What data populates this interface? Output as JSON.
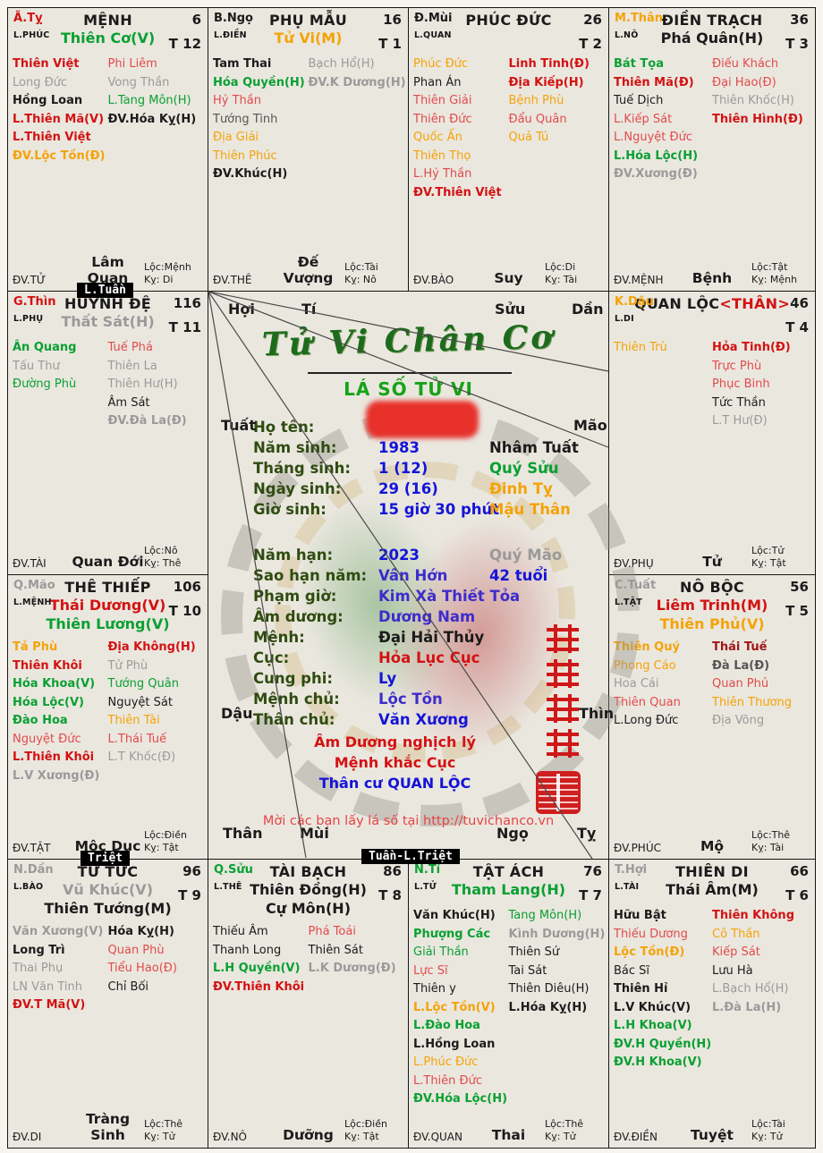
{
  "meta": {
    "logo": "Tử Vi Chân Cơ",
    "subtitle": "LÁ SỐ TỬ VI"
  },
  "badges": {
    "tuan": "L.Tuần",
    "triet": "Triệt",
    "tuan_triet": "Tuần-L.Triệt"
  },
  "center": {
    "branches": [
      "Hợi",
      "Tí",
      "Sửu",
      "Dần",
      "Mão",
      "Thìn",
      "Tỵ",
      "Ngọ",
      "Mùi",
      "Thân",
      "Dậu",
      "Tuất"
    ],
    "fields": [
      {
        "label": "Họ tên:",
        "value": "",
        "vc": "k",
        "extra": "",
        "xc": "k",
        "redacted": true
      },
      {
        "label": "Năm sinh:",
        "value": "1983",
        "vc": "bl",
        "extra": "Nhâm Tuất",
        "xc": "k"
      },
      {
        "label": "Tháng sinh:",
        "value": "1 (12)",
        "vc": "bl",
        "extra": "Quý Sửu",
        "xc": "gn"
      },
      {
        "label": "Ngày sinh:",
        "value": "29 (16)",
        "vc": "bl",
        "extra": "Đinh Tỵ",
        "xc": "or"
      },
      {
        "label": "Giờ sinh:",
        "value": "15 giờ 30 phút",
        "vc": "bl",
        "extra": "Mậu Thân",
        "xc": "or"
      },
      {
        "label": "Năm hạn:",
        "value": "2023",
        "vc": "bl",
        "extra": "Quý Mão",
        "xc": "gy"
      },
      {
        "label": "Sao hạn năm:",
        "value": "Vân Hớn",
        "vc": "bl2",
        "extra": "42 tuổi",
        "xc": "bl"
      },
      {
        "label": "Phạm giờ:",
        "value": "Kim Xà Thiết Tỏa",
        "vc": "bl2",
        "extra": "",
        "xc": "k"
      },
      {
        "label": "Âm dương:",
        "value": "Dương Nam",
        "vc": "bl2",
        "extra": "",
        "xc": "k"
      },
      {
        "label": "Mệnh:",
        "value": "Đại Hải Thủy",
        "vc": "k",
        "extra": "",
        "xc": "k"
      },
      {
        "label": "Cục:",
        "value": "Hỏa Lục Cục",
        "vc": "rd",
        "extra": "",
        "xc": "k"
      },
      {
        "label": "Cung phi:",
        "value": "Ly",
        "vc": "bl",
        "extra": "",
        "xc": "k"
      },
      {
        "label": "Mệnh chủ:",
        "value": "Lộc Tồn",
        "vc": "bl2",
        "extra": "",
        "xc": "k"
      },
      {
        "label": "Thân chủ:",
        "value": "Văn Xương",
        "vc": "bl",
        "extra": "",
        "xc": "k"
      }
    ],
    "notes": [
      {
        "t": "Âm Dương nghịch lý",
        "c": "rd"
      },
      {
        "t": "Mệnh khắc Cục",
        "c": "rd"
      },
      {
        "t": "Thân cư QUAN LỘC",
        "c": "bl"
      }
    ],
    "footer": "Mời các bạn lấy lá số tại http://tuvichanco.vn",
    "seal_text": "紫微真機"
  },
  "palaces": [
    {
      "id": "menh",
      "corner": "Ã.Tỵ",
      "cc": "rd",
      "sub": "L.PHÚC",
      "title": "MỆNH",
      "extra": "",
      "num": "6",
      "tnum": "T 12",
      "mains": [
        {
          "t": "Thiên Cơ(V)",
          "c": "gn"
        }
      ],
      "left": [
        {
          "t": "Thiên Việt",
          "c": "rd",
          "b": 1
        },
        {
          "t": "Long Đức",
          "c": "gy"
        },
        {
          "t": "Hồng Loan",
          "c": "k",
          "b": 1
        },
        {
          "t": "L.Thiên Mã(V)",
          "c": "rd",
          "b": 1
        },
        {
          "t": "L.Thiên Việt",
          "c": "rd",
          "b": 1
        },
        {
          "t": "ĐV.Lộc Tồn(Đ)",
          "c": "or",
          "b": 1
        }
      ],
      "right": [
        {
          "t": "Phi Liêm",
          "c": "rd2"
        },
        {
          "t": "Vong Thần",
          "c": "gy"
        },
        {
          "t": "L.Tang Môn(H)",
          "c": "gn"
        },
        {
          "t": "ĐV.Hóa Kỵ(H)",
          "c": "k",
          "b": 1
        }
      ],
      "dv": "ĐV.TỬ",
      "stage": "Lâm Quan",
      "loc": "Lộc:Mệnh",
      "ky": "Kỵ: Di"
    },
    {
      "id": "phumau",
      "corner": "B.Ngọ",
      "cc": "k",
      "sub": "L.ĐIỀN",
      "title": "PHỤ MẪU",
      "extra": "",
      "num": "16",
      "tnum": "T 1",
      "mains": [
        {
          "t": "Tử Vi(M)",
          "c": "or"
        }
      ],
      "left": [
        {
          "t": "Tam Thai",
          "c": "k",
          "b": 1
        },
        {
          "t": "Hóa Quyền(H)",
          "c": "gn",
          "b": 1
        },
        {
          "t": "Hỷ Thần",
          "c": "rd2"
        },
        {
          "t": "Tướng Tinh",
          "c": "dk"
        },
        {
          "t": "Địa Giải",
          "c": "or"
        },
        {
          "t": "Thiên Phúc",
          "c": "or"
        },
        {
          "t": "ĐV.Khúc(H)",
          "c": "k",
          "b": 1
        }
      ],
      "right": [
        {
          "t": "Bạch Hổ(H)",
          "c": "gy"
        },
        {
          "t": "ĐV.K Dương(H)",
          "c": "gy",
          "b": 1
        }
      ],
      "dv": "ĐV.THÊ",
      "stage": "Đế Vượng",
      "loc": "Lộc:Tài",
      "ky": "Kỵ: Nô"
    },
    {
      "id": "phucduc",
      "corner": "Đ.Mùi",
      "cc": "k",
      "sub": "L.QUAN",
      "title": "PHÚC ĐỨC",
      "extra": "",
      "num": "26",
      "tnum": "T 2",
      "mains": [],
      "left": [
        {
          "t": "Phúc Đức",
          "c": "or"
        },
        {
          "t": "Phan Án",
          "c": "k"
        },
        {
          "t": "Thiên Giải",
          "c": "rd2"
        },
        {
          "t": "Thiên Đức",
          "c": "rd2"
        },
        {
          "t": "Quốc Ấn",
          "c": "or"
        },
        {
          "t": "Thiên Thọ",
          "c": "or"
        },
        {
          "t": "L.Hỷ Thần",
          "c": "rd2"
        },
        {
          "t": "ĐV.Thiên Việt",
          "c": "rd",
          "b": 1
        }
      ],
      "right": [
        {
          "t": "Linh Tinh(Đ)",
          "c": "rd",
          "b": 1
        },
        {
          "t": "Địa Kiếp(H)",
          "c": "rd",
          "b": 1
        },
        {
          "t": "Bệnh Phù",
          "c": "or"
        },
        {
          "t": "Đẩu Quân",
          "c": "rd2"
        },
        {
          "t": "Quả Tú",
          "c": "or"
        }
      ],
      "dv": "ĐV.BÀO",
      "stage": "Suy",
      "loc": "Lộc:Di",
      "ky": "Kỵ: Tài"
    },
    {
      "id": "dientrach",
      "corner": "M.Thân",
      "cc": "or",
      "sub": "L.NÔ",
      "title": "ĐIỀN TRẠCH",
      "extra": "",
      "num": "36",
      "tnum": "T 3",
      "mains": [
        {
          "t": "Phá Quân(H)",
          "c": "k"
        }
      ],
      "left": [
        {
          "t": "Bát Tọa",
          "c": "gn",
          "b": 1
        },
        {
          "t": "Thiên Mã(Đ)",
          "c": "rd",
          "b": 1
        },
        {
          "t": "Tuế Dịch",
          "c": "k"
        },
        {
          "t": "L.Kiếp Sát",
          "c": "rd2"
        },
        {
          "t": "L.Nguyệt Đức",
          "c": "rd2"
        },
        {
          "t": "L.Hóa Lộc(H)",
          "c": "gn",
          "b": 1
        },
        {
          "t": "ĐV.Xương(Đ)",
          "c": "gy",
          "b": 1
        }
      ],
      "right": [
        {
          "t": "Điếu Khách",
          "c": "rd2"
        },
        {
          "t": "Đại Hao(Đ)",
          "c": "rd2"
        },
        {
          "t": "Thiên Khốc(H)",
          "c": "gy"
        },
        {
          "t": "Thiên Hình(Đ)",
          "c": "rd",
          "b": 1
        }
      ],
      "dv": "ĐV.MỆNH",
      "stage": "Bệnh",
      "loc": "Lộc:Tật",
      "ky": "Kỵ: Mệnh"
    },
    {
      "id": "huynhde",
      "corner": "G.Thìn",
      "cc": "rd",
      "sub": "L.PHỤ",
      "title": "HUYNH ĐỆ",
      "extra": "",
      "num": "116",
      "tnum": "T 11",
      "mains": [
        {
          "t": "Thất Sát(H)",
          "c": "gy"
        }
      ],
      "left": [
        {
          "t": "Ân Quang",
          "c": "gn",
          "b": 1
        },
        {
          "t": "Tấu Thư",
          "c": "gy"
        },
        {
          "t": "Đường Phù",
          "c": "gn"
        }
      ],
      "right": [
        {
          "t": "Tuế Phá",
          "c": "rd2"
        },
        {
          "t": "Thiên La",
          "c": "gy"
        },
        {
          "t": "Thiên Hư(H)",
          "c": "gy"
        },
        {
          "t": "Âm Sát",
          "c": "k"
        },
        {
          "t": "ĐV.Đà La(Đ)",
          "c": "gy",
          "b": 1
        }
      ],
      "dv": "ĐV.TÀI",
      "stage": "Quan Đới",
      "loc": "Lộc:Nô",
      "ky": "Kỵ: Thê"
    },
    {
      "id": "quanloc",
      "corner": "K.Dậu",
      "cc": "or",
      "sub": "L.DI",
      "title": "QUAN LỘC",
      "extra": "<THÂN>",
      "num": "46",
      "tnum": "T 4",
      "mains": [],
      "left": [
        {
          "t": "Thiên Trù",
          "c": "or"
        }
      ],
      "right": [
        {
          "t": "Hỏa Tinh(Đ)",
          "c": "rd",
          "b": 1
        },
        {
          "t": "Trực Phù",
          "c": "rd2"
        },
        {
          "t": "Phục Binh",
          "c": "rd2"
        },
        {
          "t": "Tức Thần",
          "c": "k"
        },
        {
          "t": "L.T Hư(Đ)",
          "c": "gy"
        }
      ],
      "dv": "ĐV.PHỤ",
      "stage": "Tử",
      "loc": "Lộc:Tử",
      "ky": "Kỵ: Tật"
    },
    {
      "id": "thethiep",
      "corner": "Q.Mão",
      "cc": "gy",
      "sub": "L.MỆNH",
      "title": "THÊ THIẾP",
      "extra": "",
      "num": "106",
      "tnum": "T 10",
      "mains": [
        {
          "t": "Thái Dương(V)",
          "c": "rd"
        },
        {
          "t": "Thiên Lương(V)",
          "c": "gn"
        }
      ],
      "left": [
        {
          "t": "Tả Phù",
          "c": "or",
          "b": 1
        },
        {
          "t": "Thiên Khôi",
          "c": "rd",
          "b": 1
        },
        {
          "t": "Hóa Khoa(V)",
          "c": "gn",
          "b": 1
        },
        {
          "t": "Hóa Lộc(V)",
          "c": "gn",
          "b": 1
        },
        {
          "t": "Đào Hoa",
          "c": "gn",
          "b": 1
        },
        {
          "t": "Nguyệt Đức",
          "c": "rd2"
        },
        {
          "t": "L.Thiên Khôi",
          "c": "rd",
          "b": 1
        },
        {
          "t": "L.V Xương(Đ)",
          "c": "gy",
          "b": 1
        }
      ],
      "right": [
        {
          "t": "Địa Không(H)",
          "c": "rd",
          "b": 1
        },
        {
          "t": "Tử Phù",
          "c": "gy"
        },
        {
          "t": "Tướng Quân",
          "c": "gn"
        },
        {
          "t": "Nguyệt Sát",
          "c": "k"
        },
        {
          "t": "Thiên Tài",
          "c": "or"
        },
        {
          "t": "L.Thái Tuế",
          "c": "rd2"
        },
        {
          "t": "L.T Khốc(Đ)",
          "c": "gy"
        }
      ],
      "dv": "ĐV.TẬT",
      "stage": "Mộc Dục",
      "loc": "Lộc:Điền",
      "ky": "Kỵ: Tật"
    },
    {
      "id": "noboc",
      "corner": "C.Tuất",
      "cc": "gy",
      "sub": "L.TẬT",
      "title": "NÔ BỘC",
      "extra": "",
      "num": "56",
      "tnum": "T 5",
      "mains": [
        {
          "t": "Liêm Trinh(M)",
          "c": "rd"
        },
        {
          "t": "Thiên Phủ(V)",
          "c": "or"
        }
      ],
      "left": [
        {
          "t": "Thiên Quý",
          "c": "or",
          "b": 1
        },
        {
          "t": "Phong Cáo",
          "c": "or"
        },
        {
          "t": "Hoa Cái",
          "c": "gy"
        },
        {
          "t": "Thiên Quan",
          "c": "rd2"
        },
        {
          "t": "L.Long Đức",
          "c": "k"
        }
      ],
      "right": [
        {
          "t": "Thái Tuế",
          "c": "dr",
          "b": 1
        },
        {
          "t": "Đà La(Đ)",
          "c": "dk",
          "b": 1
        },
        {
          "t": "Quan Phủ",
          "c": "rd2"
        },
        {
          "t": "Thiên Thương",
          "c": "or"
        },
        {
          "t": "Địa Võng",
          "c": "gy"
        }
      ],
      "dv": "ĐV.PHÚC",
      "stage": "Mộ",
      "loc": "Lộc:Thê",
      "ky": "Kỵ: Tài"
    },
    {
      "id": "tutuc",
      "corner": "N.Dần",
      "cc": "gy",
      "sub": "L.BÀO",
      "title": "TỬ TỨC",
      "extra": "",
      "num": "96",
      "tnum": "T 9",
      "mains": [
        {
          "t": "Vũ Khúc(V)",
          "c": "gy"
        },
        {
          "t": "Thiên Tướng(M)",
          "c": "k"
        }
      ],
      "left": [
        {
          "t": "Văn Xương(V)",
          "c": "gy",
          "b": 1
        },
        {
          "t": "Long Trì",
          "c": "k",
          "b": 1
        },
        {
          "t": "Thai Phụ",
          "c": "gy"
        },
        {
          "t": "LN Văn Tinh",
          "c": "gy"
        },
        {
          "t": "ĐV.T Mã(V)",
          "c": "rd",
          "b": 1
        }
      ],
      "right": [
        {
          "t": "Hóa Kỵ(H)",
          "c": "k",
          "b": 1
        },
        {
          "t": "Quan Phù",
          "c": "rd2"
        },
        {
          "t": "Tiểu Hao(Đ)",
          "c": "rd2"
        },
        {
          "t": "Chỉ Bối",
          "c": "k"
        }
      ],
      "dv": "ĐV.DI",
      "stage": "Tràng Sinh",
      "loc": "Lộc:Thê",
      "ky": "Kỵ: Tử"
    },
    {
      "id": "taibach",
      "corner": "Q.Sửu",
      "cc": "gn",
      "sub": "L.THÊ",
      "title": "TÀI BẠCH",
      "extra": "",
      "num": "86",
      "tnum": "T 8",
      "mains": [
        {
          "t": "Thiên Đồng(H)",
          "c": "k"
        },
        {
          "t": "Cự Môn(H)",
          "c": "k"
        }
      ],
      "left": [
        {
          "t": "Thiếu Âm",
          "c": "k"
        },
        {
          "t": "Thanh Long",
          "c": "k"
        },
        {
          "t": "L.H Quyền(V)",
          "c": "gn",
          "b": 1
        },
        {
          "t": "ĐV.Thiên Khôi",
          "c": "rd",
          "b": 1
        }
      ],
      "right": [
        {
          "t": "Phá Toái",
          "c": "rd2"
        },
        {
          "t": "Thiên Sát",
          "c": "k"
        },
        {
          "t": "L.K Dương(Đ)",
          "c": "gy",
          "b": 1
        }
      ],
      "dv": "ĐV.NÔ",
      "stage": "Dưỡng",
      "loc": "Lộc:Điền",
      "ky": "Kỵ: Tật"
    },
    {
      "id": "tatach",
      "corner": "N.Tí",
      "cc": "gn",
      "sub": "L.TỬ",
      "title": "TẬT ÁCH",
      "extra": "",
      "num": "76",
      "tnum": "T 7",
      "mains": [
        {
          "t": "Tham Lang(H)",
          "c": "gn"
        }
      ],
      "left": [
        {
          "t": "Văn Khúc(H)",
          "c": "k",
          "b": 1
        },
        {
          "t": "Phượng Các",
          "c": "gn",
          "b": 1
        },
        {
          "t": "Giải Thần",
          "c": "gn"
        },
        {
          "t": "Lực Sĩ",
          "c": "rd2"
        },
        {
          "t": "Thiên y",
          "c": "k"
        },
        {
          "t": "L.Lộc Tồn(V)",
          "c": "or",
          "b": 1
        },
        {
          "t": "L.Đào Hoa",
          "c": "gn",
          "b": 1
        },
        {
          "t": "L.Hồng Loan",
          "c": "k",
          "b": 1
        },
        {
          "t": "L.Phúc Đức",
          "c": "or"
        },
        {
          "t": "L.Thiên Đức",
          "c": "rd2"
        },
        {
          "t": "ĐV.Hóa Lộc(H)",
          "c": "gn",
          "b": 1
        }
      ],
      "right": [
        {
          "t": "Tang Môn(H)",
          "c": "gn"
        },
        {
          "t": "Kình Dương(H)",
          "c": "gy",
          "b": 1
        },
        {
          "t": "Thiên Sứ",
          "c": "k"
        },
        {
          "t": "Tai Sát",
          "c": "k"
        },
        {
          "t": "Thiên Diêu(H)",
          "c": "k"
        },
        {
          "t": "L.Hóa Kỵ(H)",
          "c": "k",
          "b": 1
        }
      ],
      "dv": "ĐV.QUAN",
      "stage": "Thai",
      "loc": "Lộc:Thê",
      "ky": "Kỵ: Tử"
    },
    {
      "id": "thiendi",
      "corner": "T.Hợi",
      "cc": "gy",
      "sub": "L.TÀI",
      "title": "THIÊN DI",
      "extra": "",
      "num": "66",
      "tnum": "T 6",
      "mains": [
        {
          "t": "Thái Âm(M)",
          "c": "k"
        }
      ],
      "left": [
        {
          "t": "Hữu Bật",
          "c": "k",
          "b": 1
        },
        {
          "t": "Thiếu Dương",
          "c": "rd2"
        },
        {
          "t": "Lộc Tồn(Đ)",
          "c": "or",
          "b": 1
        },
        {
          "t": "Bác Sĩ",
          "c": "k"
        },
        {
          "t": "Thiên Hỉ",
          "c": "k",
          "b": 1
        },
        {
          "t": "L.V Khúc(V)",
          "c": "k",
          "b": 1
        },
        {
          "t": "L.H Khoa(V)",
          "c": "gn",
          "b": 1
        },
        {
          "t": "ĐV.H Quyền(H)",
          "c": "gn",
          "b": 1
        },
        {
          "t": "ĐV.H Khoa(V)",
          "c": "gn",
          "b": 1
        }
      ],
      "right": [
        {
          "t": "Thiên Không",
          "c": "rd",
          "b": 1
        },
        {
          "t": "Cô Thần",
          "c": "or"
        },
        {
          "t": "Kiếp Sát",
          "c": "rd2"
        },
        {
          "t": "Lưu Hà",
          "c": "k"
        },
        {
          "t": "L.Bạch Hổ(H)",
          "c": "gy"
        },
        {
          "t": "L.Đà La(H)",
          "c": "gy",
          "b": 1
        }
      ],
      "dv": "ĐV.ĐIỀN",
      "stage": "Tuyệt",
      "loc": "Lộc:Tài",
      "ky": "Kỵ: Tử"
    }
  ]
}
